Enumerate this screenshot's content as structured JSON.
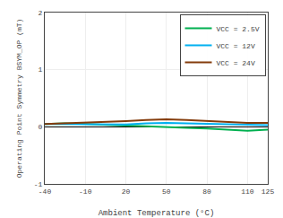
{
  "chart_data": {
    "type": "line",
    "xlabel": "Ambient Temperature (°C)",
    "ylabel": "Operating Point Symmetry BSΥM_OP (mT)",
    "x": [
      -40,
      -25,
      -10,
      5,
      20,
      35,
      50,
      65,
      80,
      95,
      110,
      125
    ],
    "series": [
      {
        "name": "VCC = 2.5V",
        "color": "#00b050",
        "values": [
          0.05,
          0.06,
          0.05,
          0.03,
          0.02,
          0.01,
          -0.01,
          -0.02,
          -0.03,
          -0.05,
          -0.07,
          -0.05
        ]
      },
      {
        "name": "VCC = 12V",
        "color": "#00b0f0",
        "values": [
          0.05,
          0.05,
          0.05,
          0.05,
          0.04,
          0.06,
          0.07,
          0.06,
          0.05,
          0.04,
          0.04,
          0.03
        ]
      },
      {
        "name": "VCC = 24V",
        "color": "#843c0c",
        "values": [
          0.05,
          0.06,
          0.08,
          0.09,
          0.1,
          0.12,
          0.13,
          0.12,
          0.1,
          0.08,
          0.07,
          0.07
        ]
      }
    ],
    "xlim": [
      -40,
      125
    ],
    "ylim": [
      -1,
      2
    ],
    "xticks": [
      -40,
      -10,
      20,
      50,
      80,
      110,
      125
    ],
    "yticks": [
      -1,
      0,
      1,
      2
    ],
    "grid": true,
    "legend": "upper right"
  }
}
